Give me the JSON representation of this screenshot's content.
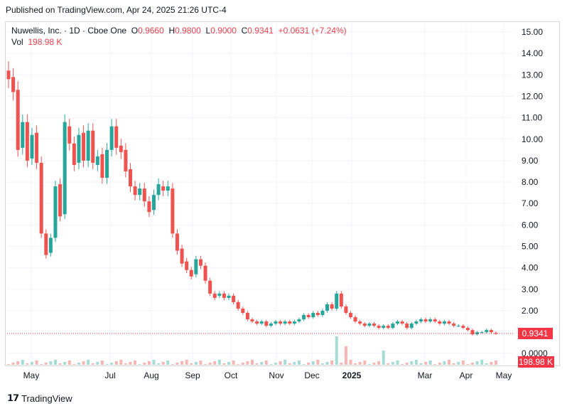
{
  "header": {
    "published": "Published on TradingView.com, Apr 24, 2025 21:26 UTC-4"
  },
  "legend": {
    "symbol": "Nuwellis, Inc. · 1D · Cboe One",
    "o_label": "O",
    "o": "0.9660",
    "h_label": "H",
    "h": "0.9800",
    "l_label": "L",
    "l": "0.9000",
    "c_label": "C",
    "c": "0.9341",
    "change": "+0.0631 (+7.24%)",
    "vol_label": "Vol",
    "vol": "198.98 K"
  },
  "price_badge": "0.9341",
  "vol_badge": "198.98 K",
  "brand": "TradingView",
  "colors": {
    "up": "#26a69a",
    "down": "#ef5350",
    "badge": "#f23645",
    "grid": "#f0f3fa",
    "vol_up": "#a6dcd6",
    "vol_down": "#f7b5b4"
  },
  "chart_data": {
    "type": "candlestick",
    "y_ticks": [
      "15.00",
      "14.00",
      "13.00",
      "12.00",
      "11.00",
      "10.00",
      "9.00",
      "8.00",
      "7.00",
      "6.00",
      "5.00",
      "4.00",
      "3.00",
      "2.00",
      "0.0000"
    ],
    "ylim": [
      0,
      15.5
    ],
    "x_ticks": [
      "May",
      "Jul",
      "Aug",
      "Sep",
      "Oct",
      "Nov",
      "Dec",
      "2025",
      "Mar",
      "Apr",
      "May"
    ],
    "last_close": 0.9341,
    "series": [
      {
        "name": "price",
        "points": [
          [
            13.2,
            12.8
          ],
          [
            12.9,
            12.2
          ],
          [
            12.3,
            9.5
          ],
          [
            9.6,
            10.8
          ],
          [
            10.8,
            9.0
          ],
          [
            9.1,
            10.2
          ],
          [
            10.3,
            8.9
          ],
          [
            8.9,
            5.6
          ],
          [
            5.6,
            4.6
          ],
          [
            4.7,
            5.4
          ],
          [
            5.4,
            7.8
          ],
          [
            7.9,
            6.4
          ],
          [
            6.5,
            10.8
          ],
          [
            10.6,
            9.8
          ],
          [
            9.8,
            8.8
          ],
          [
            8.9,
            10.2
          ],
          [
            10.3,
            9.0
          ],
          [
            9.0,
            10.4
          ],
          [
            10.4,
            8.9
          ],
          [
            8.8,
            9.2
          ],
          [
            9.3,
            8.2
          ],
          [
            8.2,
            9.5
          ],
          [
            9.5,
            10.6
          ],
          [
            10.6,
            9.6
          ],
          [
            9.7,
            9.4
          ],
          [
            9.5,
            8.5
          ],
          [
            8.6,
            7.8
          ],
          [
            7.8,
            7.4
          ],
          [
            7.4,
            7.7
          ],
          [
            7.7,
            7.1
          ],
          [
            7.1,
            6.6
          ],
          [
            6.7,
            7.4
          ],
          [
            7.4,
            7.9
          ],
          [
            7.8,
            7.6
          ],
          [
            7.6,
            7.8
          ],
          [
            7.7,
            5.6
          ],
          [
            5.6,
            4.8
          ],
          [
            4.9,
            4.2
          ],
          [
            4.3,
            3.9
          ],
          [
            3.9,
            3.6
          ],
          [
            3.7,
            4.4
          ],
          [
            4.4,
            4.1
          ],
          [
            4.1,
            3.4
          ],
          [
            3.4,
            2.8
          ],
          [
            2.8,
            2.6
          ],
          [
            2.7,
            2.8
          ],
          [
            2.8,
            2.6
          ],
          [
            2.6,
            2.7
          ],
          [
            2.7,
            2.4
          ],
          [
            2.4,
            2.1
          ],
          [
            2.1,
            1.9
          ],
          [
            1.9,
            1.6
          ],
          [
            1.6,
            1.5
          ],
          [
            1.5,
            1.4
          ],
          [
            1.4,
            1.5
          ],
          [
            1.5,
            1.3
          ],
          [
            1.3,
            1.4
          ],
          [
            1.4,
            1.5
          ],
          [
            1.5,
            1.4
          ],
          [
            1.4,
            1.5
          ],
          [
            1.5,
            1.4
          ],
          [
            1.4,
            1.5
          ],
          [
            1.5,
            1.6
          ],
          [
            1.6,
            1.8
          ],
          [
            1.8,
            1.7
          ],
          [
            1.7,
            1.9
          ],
          [
            1.9,
            1.8
          ],
          [
            1.8,
            2.0
          ],
          [
            2.0,
            2.3
          ],
          [
            2.3,
            2.1
          ],
          [
            2.1,
            2.8
          ],
          [
            2.8,
            2.2
          ],
          [
            2.2,
            1.9
          ],
          [
            1.9,
            1.7
          ],
          [
            1.7,
            1.5
          ],
          [
            1.5,
            1.4
          ],
          [
            1.4,
            1.3
          ],
          [
            1.3,
            1.4
          ],
          [
            1.4,
            1.3
          ],
          [
            1.3,
            1.2
          ],
          [
            1.2,
            1.3
          ],
          [
            1.3,
            1.2
          ],
          [
            1.2,
            1.4
          ],
          [
            1.4,
            1.5
          ],
          [
            1.5,
            1.4
          ],
          [
            1.4,
            1.2
          ],
          [
            1.2,
            1.4
          ],
          [
            1.4,
            1.5
          ],
          [
            1.5,
            1.6
          ],
          [
            1.6,
            1.5
          ],
          [
            1.5,
            1.6
          ],
          [
            1.6,
            1.5
          ],
          [
            1.5,
            1.4
          ],
          [
            1.4,
            1.5
          ],
          [
            1.5,
            1.4
          ],
          [
            1.4,
            1.3
          ],
          [
            1.3,
            1.3
          ],
          [
            1.3,
            1.2
          ],
          [
            1.2,
            1.1
          ],
          [
            1.1,
            0.9
          ],
          [
            0.9,
            1.0
          ],
          [
            1.0,
            1.0
          ],
          [
            1.0,
            1.1
          ],
          [
            1.1,
            1.0
          ],
          [
            0.97,
            0.93
          ]
        ]
      }
    ]
  }
}
